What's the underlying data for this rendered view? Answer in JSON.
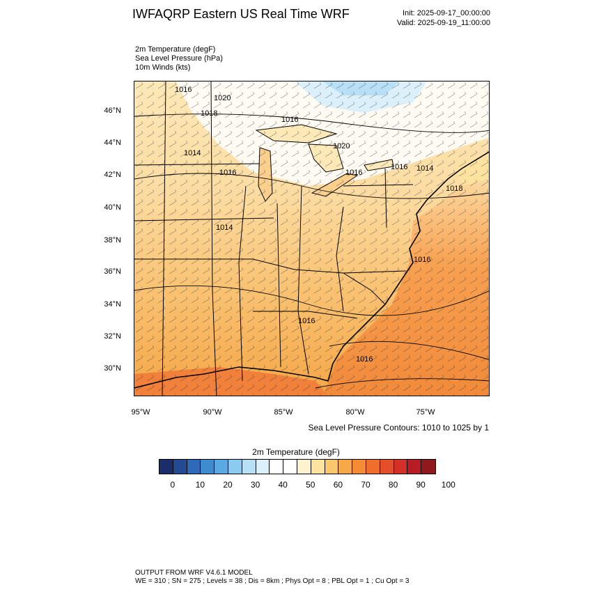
{
  "header": {
    "title": "IWFAQRP Eastern US Real Time WRF",
    "init": "Init: 2025-09-17_00:00:00",
    "valid": "Valid: 2025-09-19_11:00:00"
  },
  "fields": [
    "2m Temperature   (degF)",
    "Sea Level Pressure   (hPa)",
    "10m Winds   (kts)"
  ],
  "map": {
    "lat_labels": [
      "46°N",
      "44°N",
      "42°N",
      "40°N",
      "38°N",
      "36°N",
      "34°N",
      "32°N",
      "30°N"
    ],
    "lon_labels": [
      "95°W",
      "90°W",
      "85°W",
      "80°W",
      "75°W"
    ],
    "pressure_labels": [
      "1016",
      "1020",
      "1018",
      "1016",
      "1020",
      "1014",
      "1016",
      "1016",
      "1016",
      "1014",
      "1018",
      "1014",
      "1016",
      "1016",
      "1016"
    ],
    "contours_note": "Sea Level Pressure Contours: 1010 to 1025 by 1"
  },
  "colorbar": {
    "title": "2m Temperature  (degF)",
    "colors": [
      "#1b2e6b",
      "#234b93",
      "#2f6ab8",
      "#3f8bd0",
      "#5aa9e2",
      "#8ccbf0",
      "#b7e0f7",
      "#dcf0fb",
      "#ffffff",
      "#ffffff",
      "#fff3cf",
      "#fde2a0",
      "#fbc66c",
      "#f7a948",
      "#f58c34",
      "#f06e2b",
      "#e54e2a",
      "#d3302a",
      "#b81d26",
      "#8f1a1e"
    ],
    "ticks": [
      "0",
      "10",
      "20",
      "30",
      "40",
      "50",
      "60",
      "70",
      "80",
      "90",
      "100"
    ]
  },
  "footer": {
    "line1": "OUTPUT FROM WRF V4.6.1 MODEL",
    "line2": "WE = 310 ; SN = 275 ; Levels = 38 ; Dis = 8km ; Phys Opt = 8 ; PBL Opt = 1 ; Cu Opt = 3"
  }
}
